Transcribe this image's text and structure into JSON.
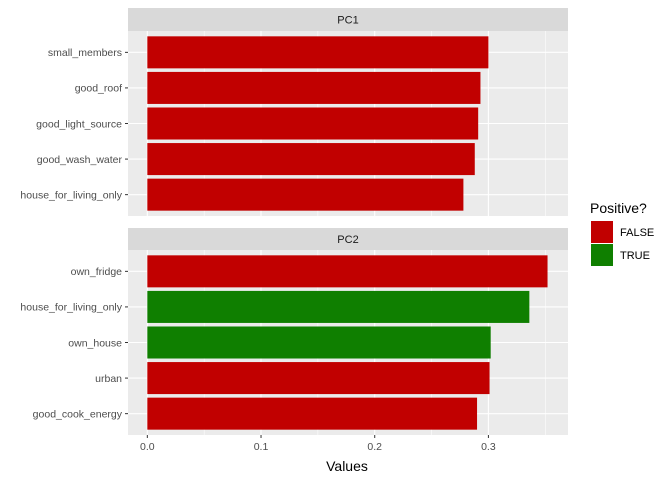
{
  "chart_data": {
    "type": "bar",
    "orientation": "horizontal",
    "xlabel": "Values",
    "ylabel": "",
    "xlim": [
      -0.017,
      0.37
    ],
    "x_ticks": [
      {
        "value": 0.0,
        "label": "0.0"
      },
      {
        "value": 0.1,
        "label": "0.1"
      },
      {
        "value": 0.2,
        "label": "0.2"
      },
      {
        "value": 0.3,
        "label": "0.3"
      }
    ],
    "grid": true,
    "legend": {
      "title": "Positive?",
      "placement": "right",
      "entries": [
        {
          "label": "FALSE",
          "color": "#c10000"
        },
        {
          "label": "TRUE",
          "color": "#0f7f00"
        }
      ]
    },
    "panels": [
      {
        "title": "PC1",
        "bars": [
          {
            "label": "small_members",
            "value": 0.3,
            "positive": "FALSE"
          },
          {
            "label": "good_roof",
            "value": 0.293,
            "positive": "FALSE"
          },
          {
            "label": "good_light_source",
            "value": 0.291,
            "positive": "FALSE"
          },
          {
            "label": "good_wash_water",
            "value": 0.288,
            "positive": "FALSE"
          },
          {
            "label": "house_for_living_only",
            "value": 0.278,
            "positive": "FALSE"
          }
        ]
      },
      {
        "title": "PC2",
        "bars": [
          {
            "label": "own_fridge",
            "value": 0.352,
            "positive": "FALSE"
          },
          {
            "label": "house_for_living_only",
            "value": 0.336,
            "positive": "TRUE"
          },
          {
            "label": "own_house",
            "value": 0.302,
            "positive": "TRUE"
          },
          {
            "label": "urban",
            "value": 0.301,
            "positive": "FALSE"
          },
          {
            "label": "good_cook_energy",
            "value": 0.29,
            "positive": "FALSE"
          }
        ]
      }
    ]
  },
  "colors": {
    "panel_background": "#ebebeb",
    "strip_background": "#d9d9d9",
    "grid_line": "#ffffff",
    "false_bar": "#c10000",
    "true_bar": "#0f7f00"
  }
}
